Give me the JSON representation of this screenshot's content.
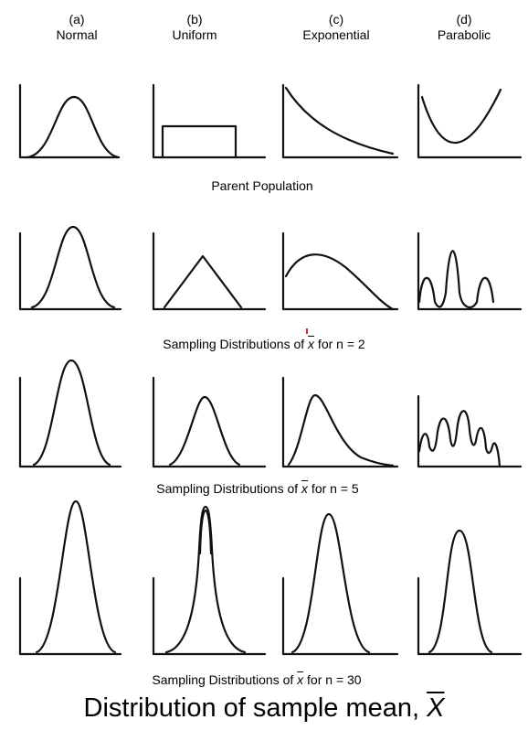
{
  "columns": [
    {
      "letter": "(a)",
      "name": "Normal"
    },
    {
      "letter": "(b)",
      "name": "Uniform"
    },
    {
      "letter": "(c)",
      "name": "Exponential"
    },
    {
      "letter": "(d)",
      "name": "Parabolic"
    }
  ],
  "row_captions": {
    "parent": "Parent Population",
    "n2_prefix": "Sampling Distributions of ",
    "n2_symbol": "x",
    "n2_suffix": " for n = 2",
    "n5_prefix": "Sampling Distributions of ",
    "n5_symbol": "x",
    "n5_suffix": " for n = 5",
    "n30_prefix": "Sampling Distributions of ",
    "n30_symbol": "x",
    "n30_suffix": " for n = 30"
  },
  "bottom_title": {
    "text": "Distribution of sample mean, ",
    "symbol": "X"
  },
  "colors": {
    "stroke": "#111111",
    "accent_mark": "#e0242b"
  }
}
